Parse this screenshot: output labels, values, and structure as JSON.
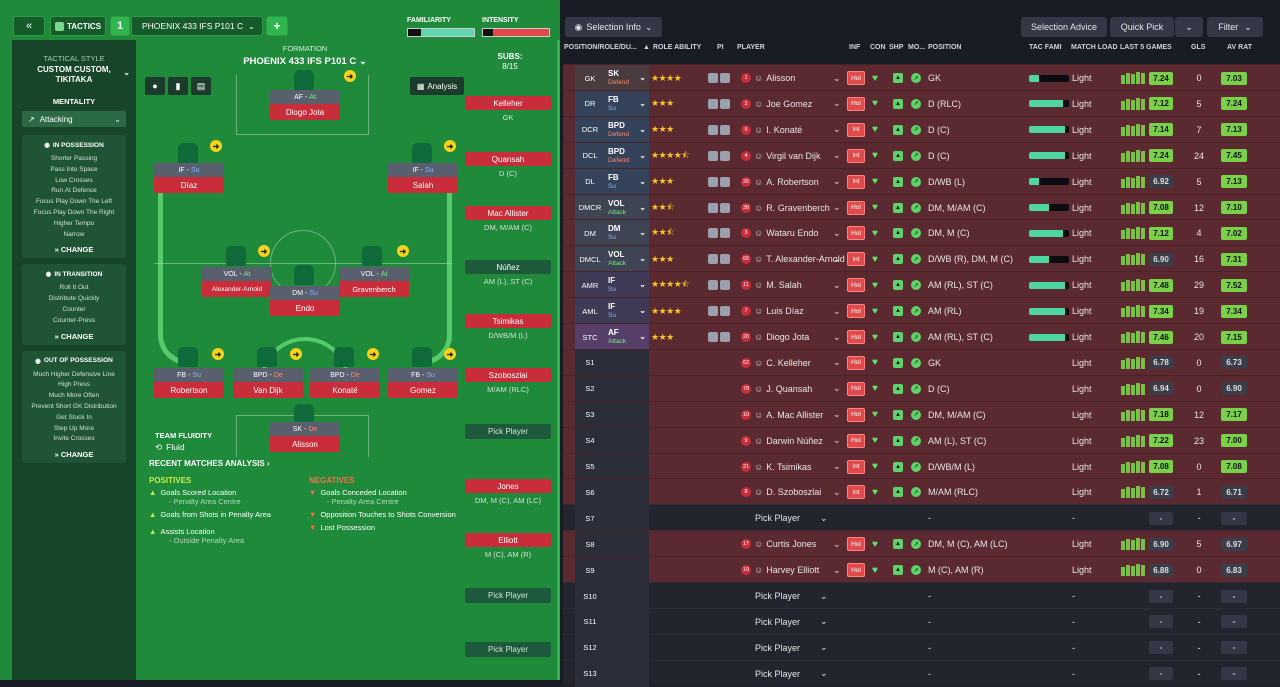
{
  "header": {
    "back_icon": "double-chevron-left-icon",
    "tactics_label": "TACTICS",
    "tactic_number": "1",
    "tactic_name": "PHOENIX 433 IFS P101 C",
    "add_label": "+",
    "familiarity_label": "FAMILIARITY",
    "intensity_label": "INTENSITY"
  },
  "sidebar": {
    "style_label": "TACTICAL STYLE",
    "style_value": "CUSTOM CUSTOM, TIKITAKA",
    "mentality_label": "MENTALITY",
    "mentality_value": "Attacking",
    "in_possession": {
      "title": "IN POSSESSION",
      "items": [
        "Shorter Passing",
        "Pass Into Space",
        "Low Crosses",
        "Run At Defence",
        "Focus Play Down The Left",
        "Focus Play Down The Right",
        "Higher Tempo",
        "Narrow"
      ],
      "change": "CHANGE"
    },
    "in_transition": {
      "title": "IN TRANSITION",
      "items": [
        "Roll It Out",
        "Distribute Quickly",
        "Counter",
        "Counter-Press"
      ],
      "change": "CHANGE"
    },
    "out_of_possession": {
      "title": "OUT OF POSSESSION",
      "items": [
        "Much Higher Defensive Line",
        "High Press",
        "Much More Often",
        "Prevent Short GK Distribution",
        "Get Stuck In",
        "Step Up More",
        "Invite Crosses"
      ],
      "change": "CHANGE"
    }
  },
  "formation": {
    "label": "FORMATION",
    "name": "PHOENIX 433 IFS P101 C",
    "subs_label": "SUBS:",
    "subs_count": "8/15",
    "analysis_label": "Analysis",
    "players": [
      {
        "role": "AF",
        "duty": "At",
        "name": "Diogo Jota"
      },
      {
        "role": "IF",
        "duty": "Su",
        "name": "Díaz"
      },
      {
        "role": "IF",
        "duty": "Su",
        "name": "Salah"
      },
      {
        "role": "VOL",
        "duty": "At",
        "name": "Alexander-Arnold"
      },
      {
        "role": "DM",
        "duty": "Su",
        "name": "Endo"
      },
      {
        "role": "VOL",
        "duty": "At",
        "name": "Gravenberch"
      },
      {
        "role": "FB",
        "duty": "Su",
        "name": "Robertson"
      },
      {
        "role": "BPD",
        "duty": "De",
        "name": "Van Dijk"
      },
      {
        "role": "BPD",
        "duty": "De",
        "name": "Konaté"
      },
      {
        "role": "FB",
        "duty": "Su",
        "name": "Gomez"
      },
      {
        "role": "SK",
        "duty": "De",
        "name": "Alisson"
      }
    ],
    "team_fluidity_label": "TEAM FLUIDITY",
    "team_fluidity_value": "Fluid"
  },
  "subs": [
    {
      "name": "Kelleher",
      "pos": "GK"
    },
    {
      "name": "Quansah",
      "pos": "D (C)"
    },
    {
      "name": "Mac Allister",
      "pos": "DM, M/AM (C)"
    },
    {
      "name": "Núñez",
      "pos": "AM (L), ST (C)",
      "number": "9"
    },
    {
      "name": "Tsimikas",
      "pos": "D/WB/M (L)"
    },
    {
      "name": "Szoboszlai",
      "pos": "M/AM (RLC)"
    },
    {
      "name": "Pick Player",
      "pos": ""
    },
    {
      "name": "Jones",
      "pos": "DM, M (C), AM (LC)"
    },
    {
      "name": "Elliott",
      "pos": "M (C), AM (R)"
    },
    {
      "name": "Pick Player",
      "pos": ""
    },
    {
      "name": "Pick Player",
      "pos": ""
    }
  ],
  "analysis": {
    "title": "RECENT MATCHES ANALYSIS ›",
    "positives_label": "POSITIVES",
    "negatives_label": "NEGATIVES",
    "positives": [
      {
        "text": "Goals Scored Location",
        "sub": "- Penalty Area Centre"
      },
      {
        "text": "Goals from Shots in Penalty Area",
        "sub": ""
      },
      {
        "text": "Assists Location",
        "sub": "- Outside Penalty Area"
      }
    ],
    "negatives": [
      {
        "text": "Goals Conceded Location",
        "sub": "- Penalty Area Centre"
      },
      {
        "text": "Opposition Touches to Shots Conversion",
        "sub": ""
      },
      {
        "text": "Lost Possession",
        "sub": ""
      }
    ]
  },
  "toolbar": {
    "selection_info": "Selection Info",
    "selection_advice": "Selection Advice",
    "quick_pick": "Quick Pick",
    "filter": "Filter"
  },
  "columns": {
    "pos": "POSITION/ROLE/DU...",
    "ability": "ROLE ABILITY",
    "pi": "PI",
    "player": "PLAYER",
    "inf": "INF",
    "con": "CON",
    "shp": "SHP",
    "mo": "MO...",
    "position": "POSITION",
    "tacfam": "TAC FAMI",
    "load": "MATCH LOAD",
    "last5": "LAST 5 GAMES",
    "gls": "GLS",
    "avrat": "AV RAT"
  },
  "rows": [
    {
      "slot": "GK",
      "role": "SK",
      "duty": "Defend",
      "stars": 4,
      "num": "1",
      "name": "Alisson",
      "inf": "Hol",
      "position": "GK",
      "tac": 0.25,
      "load": "Light",
      "rat": "7.24",
      "gls": "0",
      "av": "7.03"
    },
    {
      "slot": "DR",
      "role": "FB",
      "duty": "Su",
      "stars": 3,
      "num": "2",
      "name": "Joe Gomez",
      "inf": "Hol",
      "position": "D (RLC)",
      "tac": 0.85,
      "load": "Light",
      "rat": "7.12",
      "gls": "5",
      "av": "7.24"
    },
    {
      "slot": "DCR",
      "role": "BPD",
      "duty": "Defend",
      "stars": 3,
      "num": "5",
      "name": "I. Konaté",
      "inf": "Int",
      "position": "D (C)",
      "tac": 0.9,
      "load": "Light",
      "rat": "7.14",
      "gls": "7",
      "av": "7.13"
    },
    {
      "slot": "DCL",
      "role": "BPD",
      "duty": "Defend",
      "stars": 4.5,
      "num": "4",
      "name": "Virgil van Dijk",
      "inf": "Int",
      "position": "D (C)",
      "tac": 0.9,
      "load": "Light",
      "rat": "7.24",
      "gls": "24",
      "av": "7.45"
    },
    {
      "slot": "DL",
      "role": "FB",
      "duty": "Su",
      "stars": 3,
      "num": "26",
      "name": "A. Robertson",
      "inf": "Int",
      "position": "D/WB (L)",
      "tac": 0.25,
      "load": "Light",
      "rat": "6.92",
      "gls": "5",
      "av": "7.13"
    },
    {
      "slot": "DMCR",
      "role": "VOL",
      "duty": "Attack",
      "stars": 2.5,
      "num": "38",
      "name": "R. Gravenberch",
      "inf": "Hol",
      "position": "DM, M/AM (C)",
      "tac": 0.5,
      "load": "Light",
      "rat": "7.08",
      "gls": "12",
      "av": "7.10"
    },
    {
      "slot": "DM",
      "role": "DM",
      "duty": "Su",
      "stars": 2.5,
      "num": "3",
      "name": "Wataru Endo",
      "inf": "Hol",
      "position": "DM, M (C)",
      "tac": 0.85,
      "load": "Light",
      "rat": "7.12",
      "gls": "4",
      "av": "7.02"
    },
    {
      "slot": "DMCL",
      "role": "VOL",
      "duty": "Attack",
      "stars": 3,
      "num": "66",
      "name": "T. Alexander-Arnold",
      "inf": "Int",
      "position": "D/WB (R), DM, M (C)",
      "tac": 0.5,
      "load": "Light",
      "rat": "6.90",
      "gls": "16",
      "av": "7.31"
    },
    {
      "slot": "AMR",
      "role": "IF",
      "duty": "Su",
      "stars": 4.5,
      "num": "11",
      "name": "M. Salah",
      "inf": "Hol",
      "position": "AM (RL), ST (C)",
      "tac": 0.9,
      "load": "Light",
      "rat": "7.48",
      "gls": "29",
      "av": "7.52"
    },
    {
      "slot": "AML",
      "role": "IF",
      "duty": "Su",
      "stars": 4,
      "num": "7",
      "name": "Luis Díaz",
      "inf": "Hol",
      "position": "AM (RL)",
      "tac": 0.9,
      "load": "Light",
      "rat": "7.34",
      "gls": "19",
      "av": "7.34"
    },
    {
      "slot": "STC",
      "role": "AF",
      "duty": "Attack",
      "stars": 3,
      "num": "20",
      "name": "Diogo Jota",
      "inf": "Hol",
      "position": "AM (RL), ST (C)",
      "tac": 0.9,
      "load": "Light",
      "rat": "7.46",
      "gls": "20",
      "av": "7.15"
    },
    {
      "slot": "S1",
      "num": "62",
      "name": "C. Kelleher",
      "inf": "Hol",
      "position": "GK",
      "load": "Light",
      "rat": "6.78",
      "gls": "0",
      "av": "6.73"
    },
    {
      "slot": "S2",
      "num": "78",
      "name": "J. Quansah",
      "inf": "Hol",
      "position": "D (C)",
      "load": "Light",
      "rat": "6.94",
      "gls": "0",
      "av": "6.90"
    },
    {
      "slot": "S3",
      "num": "10",
      "name": "A. Mac Allister",
      "inf": "Hol",
      "position": "DM, M/AM (C)",
      "load": "Light",
      "rat": "7.18",
      "gls": "12",
      "av": "7.17"
    },
    {
      "slot": "S4",
      "num": "9",
      "name": "Darwin Núñez",
      "inf": "Hol",
      "position": "AM (L), ST (C)",
      "load": "Light",
      "rat": "7.22",
      "gls": "23",
      "av": "7.00"
    },
    {
      "slot": "S5",
      "num": "21",
      "name": "K. Tsimikas",
      "inf": "Int",
      "position": "D/WB/M (L)",
      "load": "Light",
      "rat": "7.08",
      "gls": "0",
      "av": "7.08"
    },
    {
      "slot": "S6",
      "num": "8",
      "name": "D. Szoboszlai",
      "inf": "Int",
      "position": "M/AM (RLC)",
      "load": "Light",
      "rat": "6.72",
      "gls": "1",
      "av": "6.71"
    },
    {
      "slot": "S7",
      "empty": true,
      "name": "Pick Player",
      "position": "-",
      "load": "-",
      "rat": "-",
      "gls": "-",
      "av": "-"
    },
    {
      "slot": "S8",
      "num": "17",
      "name": "Curtis Jones",
      "inf": "Hol",
      "position": "DM, M (C), AM (LC)",
      "load": "Light",
      "rat": "6.90",
      "gls": "5",
      "av": "6.97"
    },
    {
      "slot": "S9",
      "num": "19",
      "name": "Harvey Elliott",
      "inf": "Hol",
      "position": "M (C), AM (R)",
      "load": "Light",
      "rat": "6.88",
      "gls": "0",
      "av": "6.83"
    },
    {
      "slot": "S10",
      "empty": true,
      "name": "Pick Player",
      "position": "-",
      "load": "-",
      "rat": "-",
      "gls": "-",
      "av": "-"
    },
    {
      "slot": "S11",
      "empty": true,
      "name": "Pick Player",
      "position": "-",
      "load": "-",
      "rat": "-",
      "gls": "-",
      "av": "-"
    },
    {
      "slot": "S12",
      "empty": true,
      "name": "Pick Player",
      "position": "-",
      "load": "-",
      "rat": "-",
      "gls": "-",
      "av": "-"
    },
    {
      "slot": "S13",
      "empty": true,
      "name": "Pick Player",
      "position": "-",
      "load": "-",
      "rat": "-",
      "gls": "-",
      "av": "-"
    }
  ],
  "colors": {
    "pitch": "#1e8a3a",
    "accent_red": "#c92d3a",
    "table_row": "#5b2a30",
    "rating_green": "#79c046"
  }
}
